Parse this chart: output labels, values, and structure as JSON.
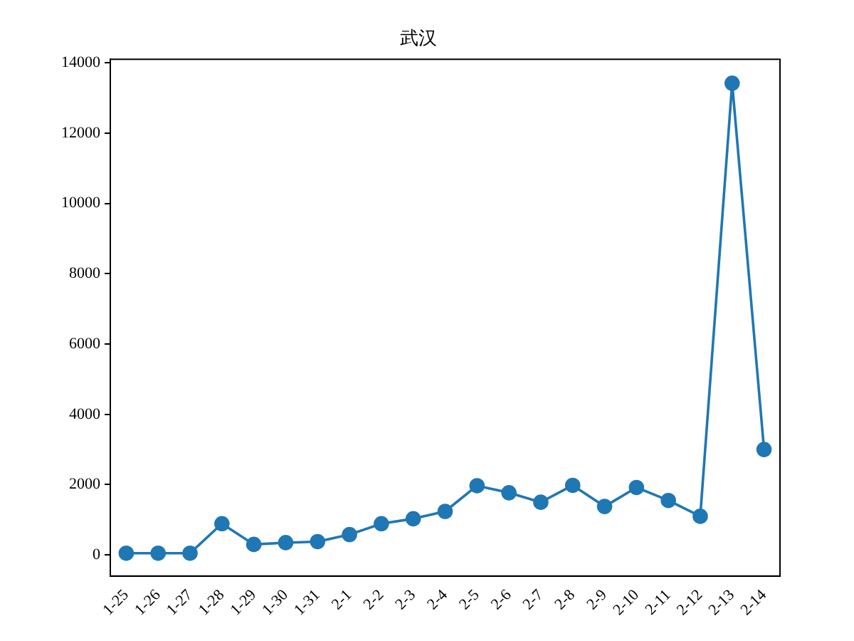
{
  "chart_data": {
    "type": "line",
    "title": "武汉",
    "categories": [
      "1-25",
      "1-26",
      "1-27",
      "1-28",
      "1-29",
      "1-30",
      "1-31",
      "2-1",
      "2-2",
      "2-3",
      "2-4",
      "2-5",
      "2-6",
      "2-7",
      "2-8",
      "2-9",
      "2-10",
      "2-11",
      "2-12",
      "2-13",
      "2-14"
    ],
    "series": [
      {
        "color": "#1f77b4",
        "values": [
          50,
          50,
          50,
          890,
          300,
          350,
          380,
          580,
          890,
          1030,
          1240,
          1970,
          1770,
          1500,
          1980,
          1380,
          1920,
          1550,
          1100,
          13420,
          3000
        ]
      }
    ],
    "ylim": [
      -600,
      14100
    ],
    "yticks": [
      0,
      2000,
      4000,
      6000,
      8000,
      10000,
      12000,
      14000
    ],
    "marker": "circle",
    "grid": false,
    "legend": false
  }
}
